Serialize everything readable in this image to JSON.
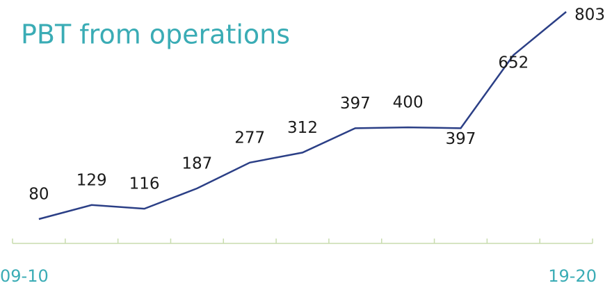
{
  "chart_data": {
    "type": "line",
    "title": "PBT from operations",
    "categories": [
      "09-10",
      null,
      null,
      null,
      null,
      null,
      null,
      null,
      null,
      null,
      "19-20"
    ],
    "values": [
      80,
      129,
      116,
      187,
      277,
      312,
      397,
      400,
      397,
      652,
      803
    ],
    "color": "#2b3f86"
  }
}
